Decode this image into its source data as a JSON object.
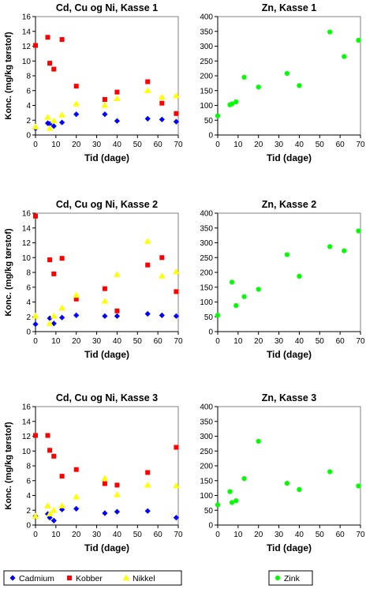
{
  "colors": {
    "cadmium": "#0000ff",
    "kobber": "#ff0000",
    "nikkel": "#ffff00",
    "zink": "#00ff00"
  },
  "legend_left": [
    {
      "key": "cadmium",
      "label": "Cadmium",
      "marker": "diamond"
    },
    {
      "key": "kobber",
      "label": "Kobber",
      "marker": "square"
    },
    {
      "key": "nikkel",
      "label": "Nikkel",
      "marker": "triangle"
    }
  ],
  "legend_right": [
    {
      "key": "zink",
      "label": "Zink",
      "marker": "circle"
    }
  ],
  "chart_data": [
    {
      "type": "scatter",
      "title": "Cd, Cu og Ni, Kasse 1",
      "xlabel": "Tid (dage)",
      "ylabel": "Konc. (mg/kg tørstof)",
      "xlim": [
        0,
        70
      ],
      "ylim": [
        0,
        16
      ],
      "xticks": [
        0,
        10,
        20,
        30,
        40,
        50,
        60,
        70
      ],
      "yticks": [
        0,
        2,
        4,
        6,
        8,
        10,
        12,
        14,
        16
      ],
      "grid": false,
      "series": [
        {
          "name": "Cadmium",
          "x": [
            0,
            6,
            7,
            9,
            13,
            20,
            34,
            40,
            55,
            62,
            69
          ],
          "y": [
            0.9,
            1.6,
            1.5,
            1.2,
            1.7,
            2.8,
            2.8,
            1.9,
            2.2,
            2.1,
            1.8
          ]
        },
        {
          "name": "Kobber",
          "x": [
            0,
            6,
            7,
            9,
            13,
            20,
            34,
            40,
            55,
            62,
            69
          ],
          "y": [
            12.1,
            13.2,
            9.7,
            8.9,
            12.9,
            6.6,
            4.8,
            5.8,
            7.2,
            4.3,
            2.9
          ]
        },
        {
          "name": "Nikkel",
          "x": [
            0,
            6,
            7,
            9,
            13,
            20,
            34,
            40,
            55,
            62,
            69
          ],
          "y": [
            1.1,
            2.4,
            0.9,
            1.9,
            2.7,
            4.2,
            4.0,
            4.9,
            6.0,
            5.1,
            5.3
          ]
        }
      ]
    },
    {
      "type": "scatter",
      "title": "Zn, Kasse 1",
      "xlabel": "Tid (dage)",
      "ylabel": "",
      "xlim": [
        0,
        70
      ],
      "ylim": [
        0,
        400
      ],
      "xticks": [
        0,
        10,
        20,
        30,
        40,
        50,
        60,
        70
      ],
      "yticks": [
        0,
        50,
        100,
        150,
        200,
        250,
        300,
        350,
        400
      ],
      "grid": false,
      "series": [
        {
          "name": "Zink",
          "x": [
            0,
            6,
            7,
            9,
            13,
            20,
            34,
            40,
            55,
            62,
            69
          ],
          "y": [
            65,
            102,
            105,
            112,
            195,
            162,
            208,
            167,
            348,
            265,
            320
          ]
        }
      ]
    },
    {
      "type": "scatter",
      "title": "Cd, Cu og Ni, Kasse 2",
      "xlabel": "Tid (dage)",
      "ylabel": "Konc. (mg/kg tørstof)",
      "xlim": [
        0,
        70
      ],
      "ylim": [
        0,
        16
      ],
      "xticks": [
        0,
        10,
        20,
        30,
        40,
        50,
        60,
        70
      ],
      "yticks": [
        0,
        2,
        4,
        6,
        8,
        10,
        12,
        14,
        16
      ],
      "grid": false,
      "series": [
        {
          "name": "Cadmium",
          "x": [
            0,
            7,
            9,
            13,
            20,
            34,
            40,
            55,
            62,
            69
          ],
          "y": [
            1.0,
            1.8,
            1.1,
            1.9,
            2.2,
            2.1,
            2.1,
            2.4,
            2.2,
            2.1
          ]
        },
        {
          "name": "Kobber",
          "x": [
            0,
            7,
            9,
            13,
            20,
            34,
            40,
            55,
            62,
            69
          ],
          "y": [
            15.6,
            9.7,
            7.8,
            9.9,
            4.4,
            5.8,
            2.8,
            9.0,
            10.0,
            5.4
          ]
        },
        {
          "name": "Nikkel",
          "x": [
            0,
            7,
            9,
            13,
            20,
            34,
            40,
            55,
            62,
            69
          ],
          "y": [
            2.1,
            1.1,
            2.1,
            3.2,
            4.9,
            4.1,
            7.7,
            12.2,
            7.5,
            8.1
          ]
        }
      ]
    },
    {
      "type": "scatter",
      "title": "Zn, Kasse 2",
      "xlabel": "Tid (dage)",
      "ylabel": "",
      "xlim": [
        0,
        70
      ],
      "ylim": [
        0,
        400
      ],
      "xticks": [
        0,
        10,
        20,
        30,
        40,
        50,
        60,
        70
      ],
      "yticks": [
        0,
        50,
        100,
        150,
        200,
        250,
        300,
        350,
        400
      ],
      "grid": false,
      "series": [
        {
          "name": "Zink",
          "x": [
            0,
            7,
            9,
            13,
            20,
            34,
            40,
            55,
            62,
            69
          ],
          "y": [
            55,
            167,
            88,
            118,
            143,
            260,
            187,
            287,
            273,
            340
          ]
        }
      ]
    },
    {
      "type": "scatter",
      "title": "Cd, Cu og Ni, Kasse 3",
      "xlabel": "Tid (dage)",
      "ylabel": "Konc. (mg/kg tørstof)",
      "xlim": [
        0,
        70
      ],
      "ylim": [
        0,
        16
      ],
      "xticks": [
        0,
        10,
        20,
        30,
        40,
        50,
        60,
        70
      ],
      "yticks": [
        0,
        2,
        4,
        6,
        8,
        10,
        12,
        14,
        16
      ],
      "grid": false,
      "series": [
        {
          "name": "Cadmium",
          "x": [
            0,
            6,
            7,
            9,
            13,
            20,
            34,
            40,
            55,
            69
          ],
          "y": [
            1.2,
            1.5,
            1.0,
            0.6,
            2.1,
            2.2,
            1.6,
            1.8,
            1.9,
            1.0
          ]
        },
        {
          "name": "Kobber",
          "x": [
            0,
            6,
            7,
            9,
            13,
            20,
            34,
            40,
            55,
            69
          ],
          "y": [
            12.1,
            12.1,
            10.1,
            9.3,
            6.6,
            7.5,
            5.6,
            5.4,
            7.1,
            10.5
          ]
        },
        {
          "name": "Nikkel",
          "x": [
            0,
            6,
            7,
            9,
            13,
            20,
            34,
            40,
            55,
            69
          ],
          "y": [
            1.2,
            2.6,
            1.5,
            2.0,
            2.6,
            3.8,
            6.3,
            4.1,
            5.4,
            5.3
          ]
        }
      ]
    },
    {
      "type": "scatter",
      "title": "Zn, Kasse 3",
      "xlabel": "Tid (dage)",
      "ylabel": "",
      "xlim": [
        0,
        70
      ],
      "ylim": [
        0,
        400
      ],
      "xticks": [
        0,
        10,
        20,
        30,
        40,
        50,
        60,
        70
      ],
      "yticks": [
        0,
        50,
        100,
        150,
        200,
        250,
        300,
        350,
        400
      ],
      "grid": false,
      "series": [
        {
          "name": "Zink",
          "x": [
            0,
            6,
            7,
            9,
            13,
            20,
            34,
            40,
            55,
            69
          ],
          "y": [
            68,
            113,
            76,
            82,
            157,
            283,
            141,
            120,
            180,
            132
          ]
        }
      ]
    }
  ]
}
